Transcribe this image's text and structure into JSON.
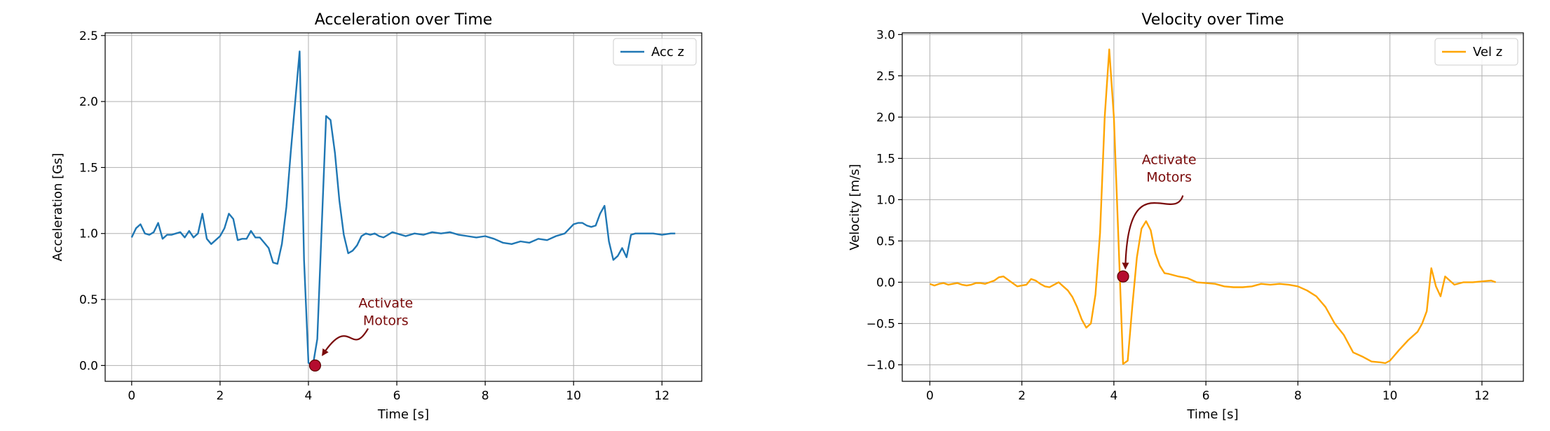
{
  "chart_data": [
    {
      "type": "line",
      "title": "Acceleration over Time",
      "xlabel": "Time [s]",
      "ylabel": "Acceleration [Gs]",
      "xlim": [
        -0.6,
        12.9
      ],
      "ylim": [
        -0.12,
        2.52
      ],
      "xticks": [
        0,
        2,
        4,
        6,
        8,
        10,
        12
      ],
      "xtick_labels": [
        "0",
        "2",
        "4",
        "6",
        "8",
        "10",
        "12"
      ],
      "yticks": [
        0.0,
        0.5,
        1.0,
        1.5,
        2.0,
        2.5
      ],
      "ytick_labels": [
        "0.0",
        "0.5",
        "1.0",
        "1.5",
        "2.0",
        "2.5"
      ],
      "grid": true,
      "legend_position": "top-right",
      "series": [
        {
          "name": "Acc z",
          "color": "#1f77b4",
          "x": [
            0,
            0.1,
            0.2,
            0.3,
            0.4,
            0.5,
            0.6,
            0.7,
            0.8,
            0.9,
            1.0,
            1.1,
            1.2,
            1.3,
            1.4,
            1.5,
            1.6,
            1.7,
            1.8,
            1.9,
            2.0,
            2.1,
            2.2,
            2.3,
            2.4,
            2.5,
            2.6,
            2.7,
            2.8,
            2.9,
            3.0,
            3.1,
            3.2,
            3.3,
            3.4,
            3.5,
            3.6,
            3.7,
            3.8,
            3.9,
            4.0,
            4.1,
            4.2,
            4.3,
            4.4,
            4.5,
            4.6,
            4.7,
            4.8,
            4.9,
            5.0,
            5.1,
            5.2,
            5.3,
            5.4,
            5.5,
            5.6,
            5.7,
            5.8,
            5.9,
            6.0,
            6.2,
            6.4,
            6.6,
            6.8,
            7.0,
            7.2,
            7.4,
            7.6,
            7.8,
            8.0,
            8.2,
            8.4,
            8.6,
            8.8,
            9.0,
            9.2,
            9.4,
            9.6,
            9.8,
            10.0,
            10.1,
            10.2,
            10.3,
            10.4,
            10.5,
            10.6,
            10.7,
            10.8,
            10.9,
            11.0,
            11.1,
            11.2,
            11.3,
            11.4,
            11.6,
            11.8,
            12.0,
            12.2,
            12.3
          ],
          "y": [
            0.97,
            1.04,
            1.07,
            1.0,
            0.99,
            1.01,
            1.08,
            0.96,
            0.99,
            0.99,
            1.0,
            1.01,
            0.97,
            1.02,
            0.97,
            1.0,
            1.15,
            0.96,
            0.92,
            0.95,
            0.98,
            1.04,
            1.15,
            1.11,
            0.95,
            0.96,
            0.96,
            1.02,
            0.97,
            0.97,
            0.93,
            0.89,
            0.78,
            0.77,
            0.92,
            1.2,
            1.62,
            2.0,
            2.38,
            0.8,
            0.02,
            0.0,
            0.2,
            1.05,
            1.89,
            1.86,
            1.61,
            1.25,
            0.99,
            0.85,
            0.87,
            0.91,
            0.98,
            1.0,
            0.99,
            1.0,
            0.98,
            0.97,
            0.99,
            1.01,
            1.0,
            0.98,
            1.0,
            0.99,
            1.01,
            1.0,
            1.01,
            0.99,
            0.98,
            0.97,
            0.98,
            0.96,
            0.93,
            0.92,
            0.94,
            0.93,
            0.96,
            0.95,
            0.98,
            1.0,
            1.07,
            1.08,
            1.08,
            1.06,
            1.05,
            1.06,
            1.15,
            1.21,
            0.94,
            0.8,
            0.83,
            0.89,
            0.82,
            0.99,
            1.0,
            1.0,
            1.0,
            0.99,
            1.0,
            1.0
          ]
        }
      ],
      "marker": {
        "x": 4.15,
        "y": 0.0,
        "color": "#b50c2f"
      },
      "annotation": {
        "lines": [
          "Activate",
          "Motors"
        ],
        "text_x": 5.75,
        "text_y": 0.44,
        "arrow_from": [
          5.35,
          0.28
        ],
        "arrow_ctrl1": [
          4.95,
          0.05
        ],
        "arrow_ctrl2": [
          4.95,
          0.4
        ],
        "arrow_to": [
          4.32,
          0.08
        ],
        "color": "#7a0a0a"
      }
    },
    {
      "type": "line",
      "title": "Velocity over Time",
      "xlabel": "Time [s]",
      "ylabel": "Velocity [m/s]",
      "xlim": [
        -0.6,
        12.9
      ],
      "ylim": [
        -1.2,
        3.02
      ],
      "xticks": [
        0,
        2,
        4,
        6,
        8,
        10,
        12
      ],
      "xtick_labels": [
        "0",
        "2",
        "4",
        "6",
        "8",
        "10",
        "12"
      ],
      "yticks": [
        -1.0,
        -0.5,
        0.0,
        0.5,
        1.0,
        1.5,
        2.0,
        2.5,
        3.0
      ],
      "ytick_labels": [
        "−1.0",
        "−0.5",
        "0.0",
        "0.5",
        "1.0",
        "1.5",
        "2.0",
        "2.5",
        "3.0"
      ],
      "grid": true,
      "legend_position": "top-right",
      "series": [
        {
          "name": "Vel z",
          "color": "#ffa500",
          "x": [
            0,
            0.1,
            0.2,
            0.3,
            0.4,
            0.5,
            0.6,
            0.7,
            0.8,
            0.9,
            1.0,
            1.1,
            1.2,
            1.3,
            1.4,
            1.5,
            1.6,
            1.7,
            1.8,
            1.9,
            2.0,
            2.1,
            2.2,
            2.3,
            2.4,
            2.5,
            2.6,
            2.7,
            2.8,
            2.9,
            3.0,
            3.1,
            3.2,
            3.3,
            3.4,
            3.5,
            3.6,
            3.7,
            3.8,
            3.9,
            4.0,
            4.1,
            4.2,
            4.3,
            4.4,
            4.5,
            4.6,
            4.7,
            4.8,
            4.9,
            5.0,
            5.1,
            5.2,
            5.4,
            5.6,
            5.8,
            6.0,
            6.2,
            6.4,
            6.6,
            6.8,
            7.0,
            7.2,
            7.4,
            7.6,
            7.8,
            8.0,
            8.2,
            8.4,
            8.6,
            8.8,
            9.0,
            9.2,
            9.4,
            9.6,
            9.8,
            9.9,
            10.0,
            10.2,
            10.4,
            10.6,
            10.7,
            10.8,
            10.9,
            11.0,
            11.1,
            11.2,
            11.4,
            11.6,
            11.8,
            12.0,
            12.2,
            12.3
          ],
          "y": [
            -0.02,
            -0.04,
            -0.02,
            -0.01,
            -0.03,
            -0.02,
            -0.01,
            -0.03,
            -0.04,
            -0.03,
            -0.01,
            -0.01,
            -0.02,
            0.0,
            0.02,
            0.06,
            0.07,
            0.03,
            -0.01,
            -0.05,
            -0.04,
            -0.03,
            0.04,
            0.02,
            -0.02,
            -0.05,
            -0.06,
            -0.03,
            0.0,
            -0.05,
            -0.1,
            -0.18,
            -0.3,
            -0.45,
            -0.55,
            -0.5,
            -0.15,
            0.6,
            2.0,
            2.82,
            2.0,
            0.5,
            -0.99,
            -0.95,
            -0.3,
            0.3,
            0.65,
            0.74,
            0.63,
            0.35,
            0.2,
            0.11,
            0.1,
            0.07,
            0.05,
            0.0,
            -0.01,
            -0.02,
            -0.05,
            -0.06,
            -0.06,
            -0.05,
            -0.02,
            -0.03,
            -0.02,
            -0.03,
            -0.05,
            -0.1,
            -0.17,
            -0.3,
            -0.5,
            -0.64,
            -0.85,
            -0.9,
            -0.96,
            -0.97,
            -0.98,
            -0.95,
            -0.82,
            -0.7,
            -0.6,
            -0.5,
            -0.35,
            0.17,
            -0.05,
            -0.17,
            0.07,
            -0.03,
            0.0,
            0.0,
            0.01,
            0.02,
            0.0
          ]
        }
      ],
      "marker": {
        "x": 4.2,
        "y": 0.07,
        "color": "#b50c2f"
      },
      "annotation": {
        "lines": [
          "Activate",
          "Motors"
        ],
        "text_x": 5.2,
        "text_y": 1.43,
        "arrow_from": [
          5.5,
          1.05
        ],
        "arrow_ctrl1": [
          5.3,
          0.7
        ],
        "arrow_ctrl2": [
          4.3,
          1.45
        ],
        "arrow_to": [
          4.25,
          0.17
        ],
        "color": "#7a0a0a"
      }
    }
  ]
}
